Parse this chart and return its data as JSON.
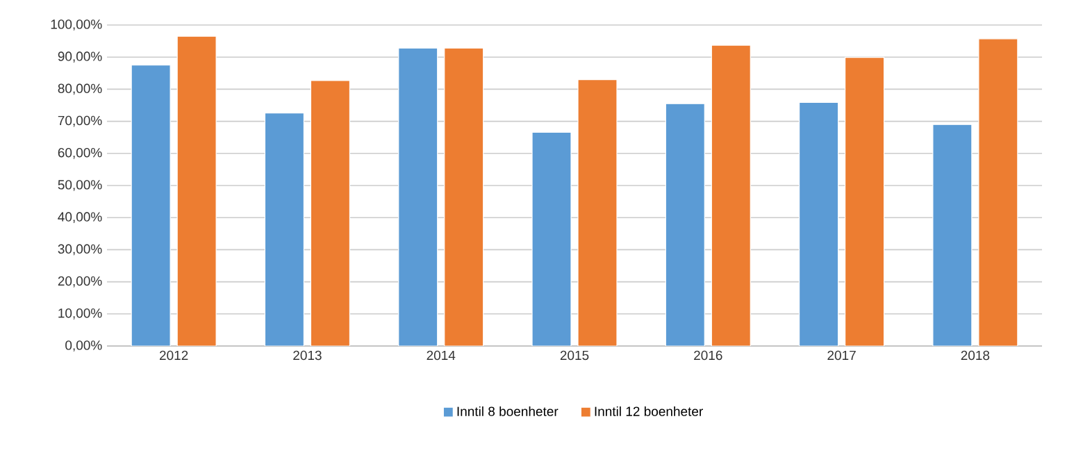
{
  "chart_data": {
    "type": "bar",
    "categories": [
      "2012",
      "2013",
      "2014",
      "2015",
      "2016",
      "2017",
      "2018"
    ],
    "series": [
      {
        "name": "Inntil 8 boenheter",
        "color": "#5b9bd5",
        "values": [
          87.5,
          72.6,
          92.8,
          66.6,
          75.5,
          75.9,
          69.0
        ]
      },
      {
        "name": "Inntil 12 boenheter",
        "color": "#ed7d31",
        "values": [
          96.5,
          82.7,
          92.8,
          83.0,
          93.7,
          89.9,
          95.7
        ]
      }
    ],
    "ylim": [
      0,
      100
    ],
    "yticks": [
      {
        "value": 0,
        "label": "0,00%"
      },
      {
        "value": 10,
        "label": "10,00%"
      },
      {
        "value": 20,
        "label": "20,00%"
      },
      {
        "value": 30,
        "label": "30,00%"
      },
      {
        "value": 40,
        "label": "40,00%"
      },
      {
        "value": 50,
        "label": "50,00%"
      },
      {
        "value": 60,
        "label": "60,00%"
      },
      {
        "value": 70,
        "label": "70,00%"
      },
      {
        "value": 80,
        "label": "80,00%"
      },
      {
        "value": 90,
        "label": "90,00%"
      },
      {
        "value": 100,
        "label": "100,00%"
      }
    ],
    "grid": "y",
    "legend": "bottom"
  }
}
